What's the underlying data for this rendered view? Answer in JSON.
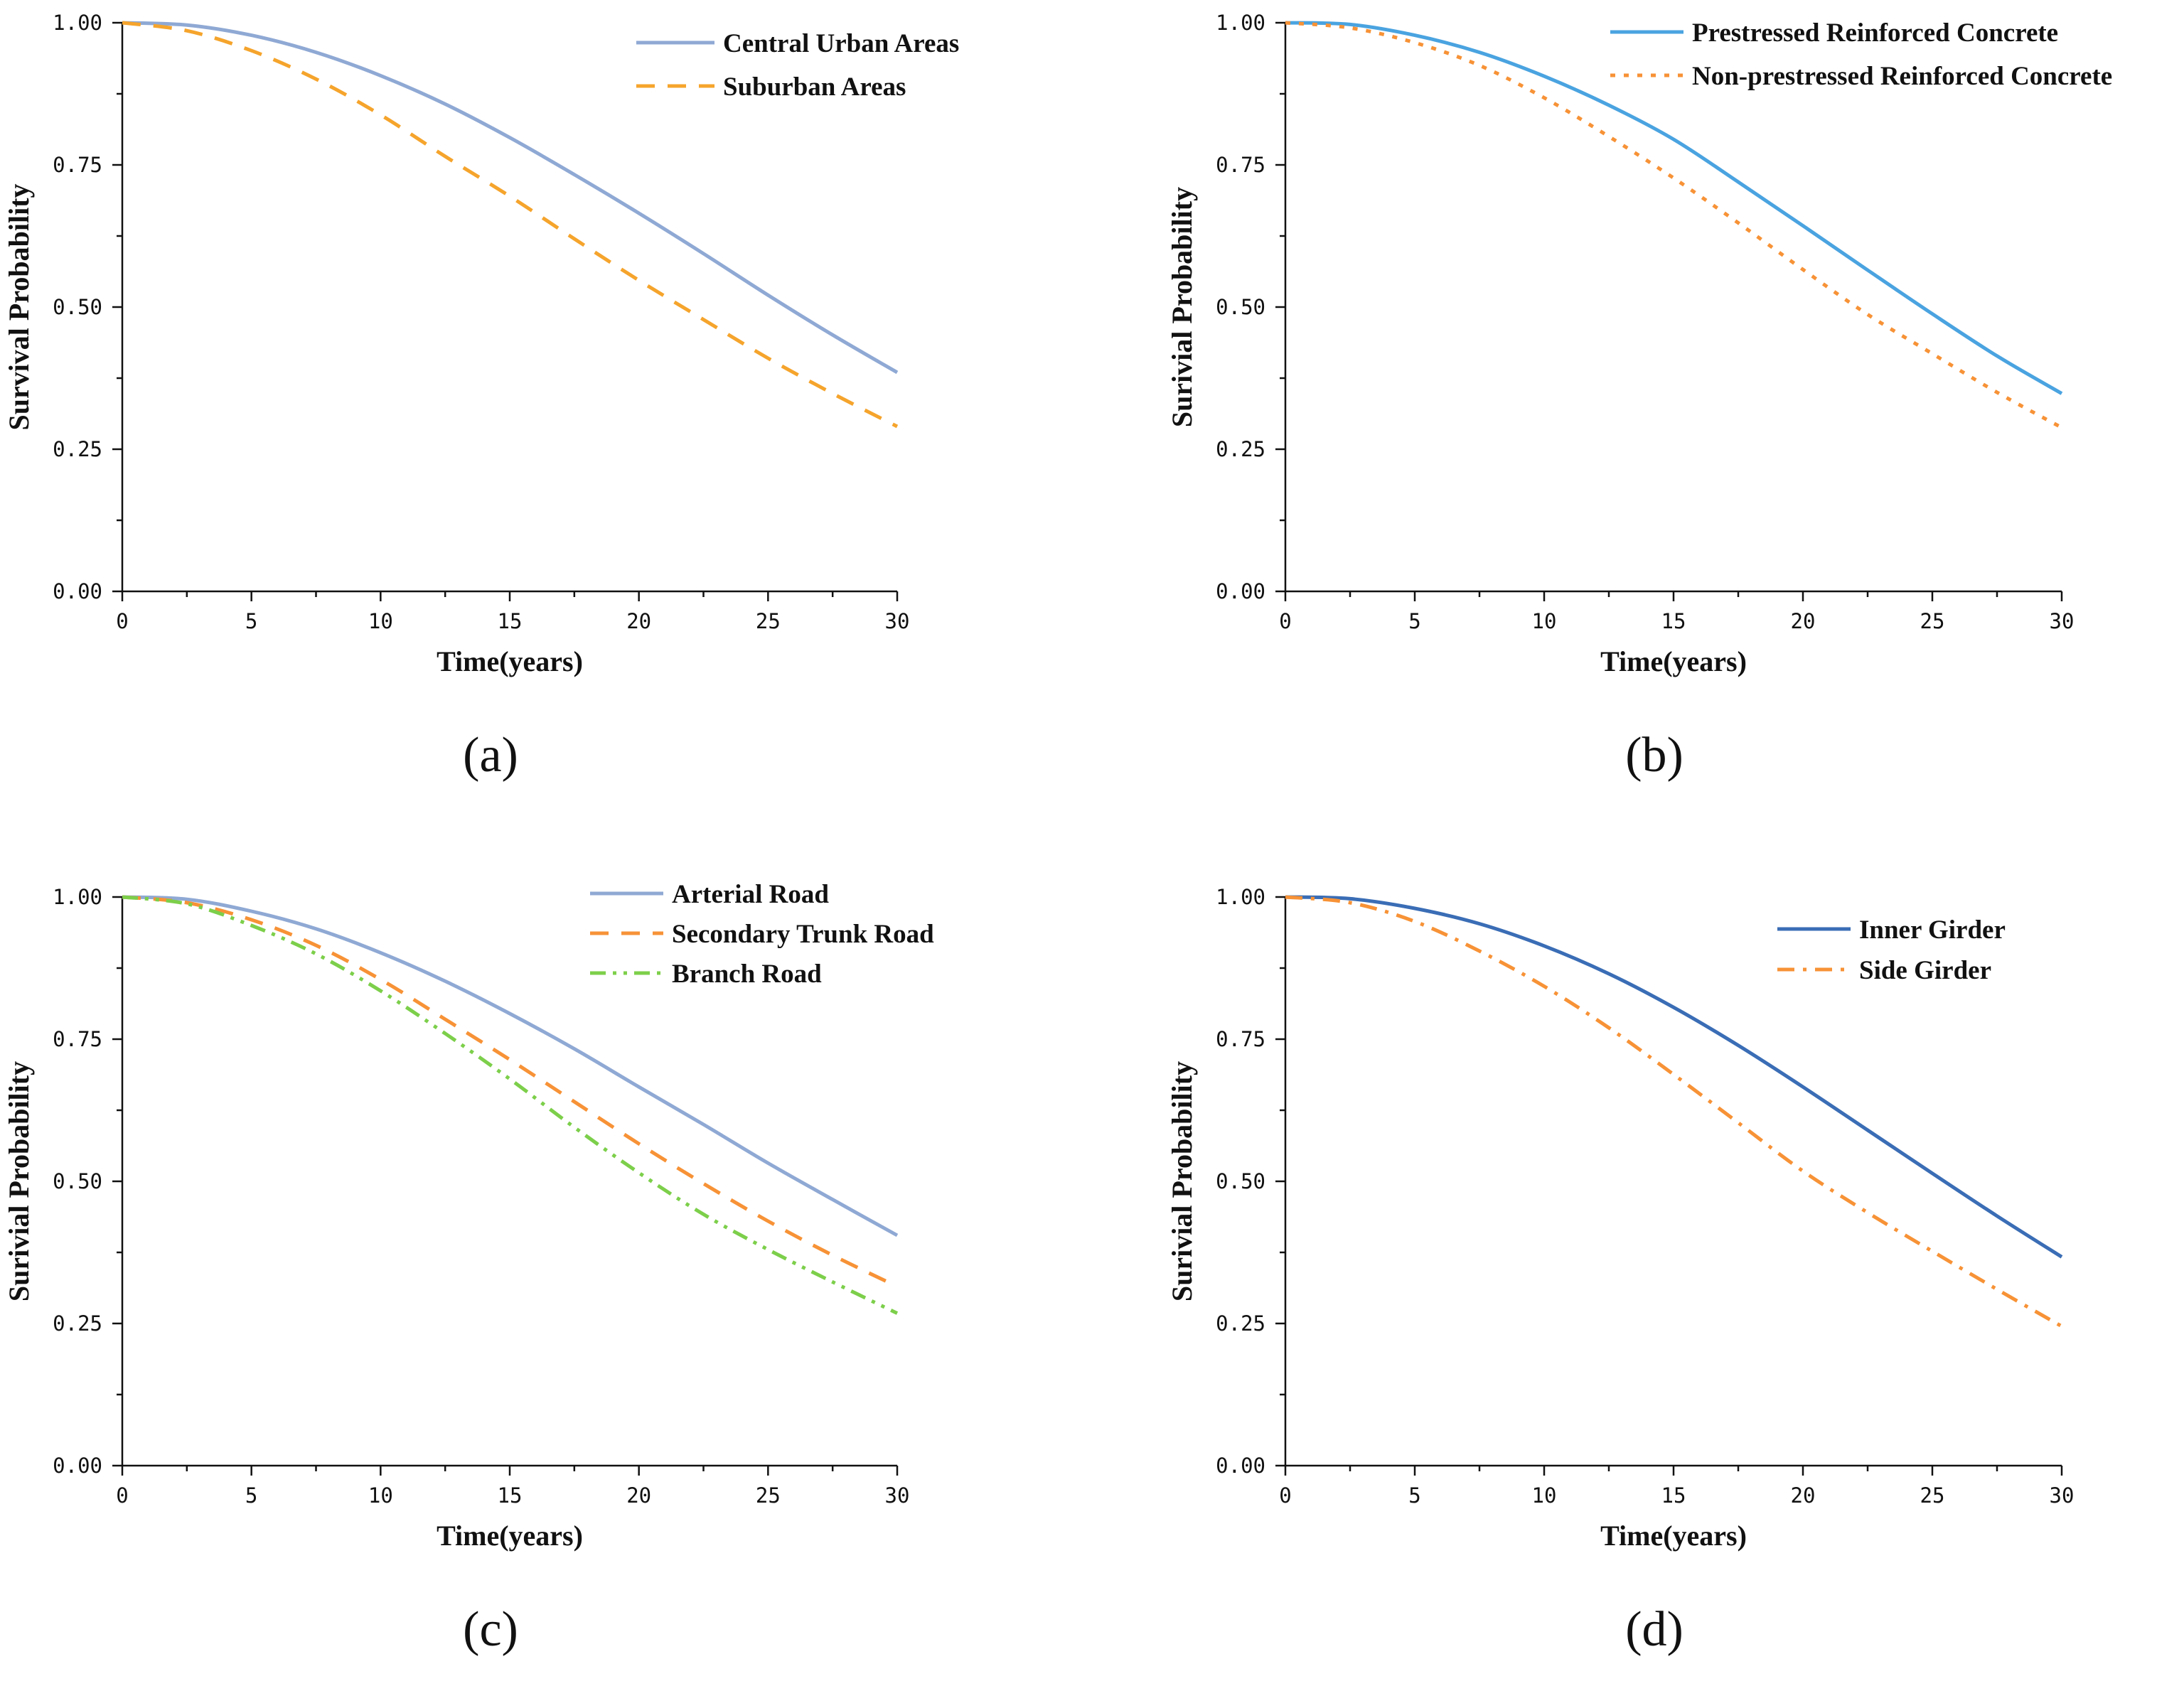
{
  "chart_data": [
    {
      "type": "line",
      "panel_label": "(a)",
      "xlabel": "Time(years)",
      "ylabel": "Survival Probability",
      "xlim": [
        0,
        30
      ],
      "ylim": [
        0,
        1
      ],
      "x_ticks": [
        "0",
        "5",
        "10",
        "15",
        "20",
        "25",
        "30"
      ],
      "y_ticks": [
        "0.00",
        "0.25",
        "0.50",
        "0.75",
        "1.00"
      ],
      "legend_position": "top-right",
      "x": [
        0,
        2.5,
        5,
        7.5,
        10,
        12.5,
        15,
        17.5,
        20,
        22.5,
        25,
        27.5,
        30
      ],
      "series": [
        {
          "name": "Central Urban Areas",
          "color": "#8fa9d4",
          "dash": "solid",
          "values": [
            1.0,
            0.996,
            0.978,
            0.948,
            0.907,
            0.857,
            0.798,
            0.733,
            0.665,
            0.594,
            0.521,
            0.451,
            0.385
          ]
        },
        {
          "name": "Suburban Areas",
          "color": "#f5a42c",
          "dash": "dash",
          "values": [
            1.0,
            0.986,
            0.951,
            0.901,
            0.838,
            0.765,
            0.695,
            0.62,
            0.547,
            0.478,
            0.41,
            0.348,
            0.29
          ]
        }
      ]
    },
    {
      "type": "line",
      "panel_label": "(b)",
      "xlabel": "Time(years)",
      "ylabel": "Surivial Probability",
      "xlim": [
        0,
        30
      ],
      "ylim": [
        0,
        1
      ],
      "x_ticks": [
        "0",
        "5",
        "10",
        "15",
        "20",
        "25",
        "30"
      ],
      "y_ticks": [
        "0.00",
        "0.25",
        "0.50",
        "0.75",
        "1.00"
      ],
      "legend_position": "top-right",
      "x": [
        0,
        2.5,
        5,
        7.5,
        10,
        12.5,
        15,
        17.5,
        20,
        22.5,
        25,
        27.5,
        30
      ],
      "series": [
        {
          "name": "Prestressed Reinforced Concrete",
          "color": "#4aa3e0",
          "dash": "solid",
          "values": [
            1.0,
            0.997,
            0.978,
            0.948,
            0.906,
            0.855,
            0.795,
            0.72,
            0.643,
            0.565,
            0.488,
            0.414,
            0.348
          ]
        },
        {
          "name": "Non-prestressed Reinforced Concrete",
          "color": "#f79236",
          "dash": "dot",
          "values": [
            1.0,
            0.991,
            0.965,
            0.925,
            0.868,
            0.8,
            0.727,
            0.648,
            0.566,
            0.487,
            0.418,
            0.35,
            0.288
          ]
        }
      ]
    },
    {
      "type": "line",
      "panel_label": "(c)",
      "xlabel": "Time(years)",
      "ylabel": "Surivial Probability",
      "xlim": [
        0,
        30
      ],
      "ylim": [
        0,
        1
      ],
      "x_ticks": [
        "0",
        "5",
        "10",
        "15",
        "20",
        "25",
        "30"
      ],
      "y_ticks": [
        "0.00",
        "0.25",
        "0.50",
        "0.75",
        "1.00"
      ],
      "legend_position": "top-right",
      "x": [
        0,
        2.5,
        5,
        7.5,
        10,
        12.5,
        15,
        17.5,
        20,
        22.5,
        25,
        27.5,
        30
      ],
      "series": [
        {
          "name": "Arterial Road",
          "color": "#8fa9d4",
          "dash": "solid",
          "values": [
            1.0,
            0.996,
            0.975,
            0.944,
            0.902,
            0.852,
            0.795,
            0.733,
            0.666,
            0.6,
            0.532,
            0.468,
            0.405
          ]
        },
        {
          "name": "Secondary Trunk Road",
          "color": "#f79236",
          "dash": "dash",
          "values": [
            1.0,
            0.99,
            0.96,
            0.915,
            0.855,
            0.785,
            0.714,
            0.64,
            0.566,
            0.496,
            0.43,
            0.37,
            0.315
          ]
        },
        {
          "name": "Branch Road",
          "color": "#7ccf4a",
          "dash": "dashdotdot",
          "values": [
            1.0,
            0.988,
            0.95,
            0.9,
            0.835,
            0.76,
            0.68,
            0.595,
            0.515,
            0.442,
            0.38,
            0.323,
            0.268
          ]
        }
      ]
    },
    {
      "type": "line",
      "panel_label": "(d)",
      "xlabel": "Time(years)",
      "ylabel": "Surivial Probability",
      "xlim": [
        0,
        30
      ],
      "ylim": [
        0,
        1
      ],
      "x_ticks": [
        "0",
        "5",
        "10",
        "15",
        "20",
        "25",
        "30"
      ],
      "y_ticks": [
        "0.00",
        "0.25",
        "0.50",
        "0.75",
        "1.00"
      ],
      "legend_position": "top-right",
      "x": [
        0,
        2.5,
        5,
        7.5,
        10,
        12.5,
        15,
        17.5,
        20,
        22.5,
        25,
        27.5,
        30
      ],
      "series": [
        {
          "name": "Inner Girder",
          "color": "#3a6db5",
          "dash": "solid",
          "values": [
            1.0,
            0.997,
            0.98,
            0.953,
            0.914,
            0.865,
            0.806,
            0.739,
            0.666,
            0.59,
            0.514,
            0.439,
            0.367
          ]
        },
        {
          "name": "Side Girder",
          "color": "#f79236",
          "dash": "dashdot",
          "values": [
            1.0,
            0.99,
            0.957,
            0.905,
            0.843,
            0.77,
            0.688,
            0.603,
            0.518,
            0.445,
            0.377,
            0.31,
            0.245
          ]
        }
      ]
    }
  ]
}
